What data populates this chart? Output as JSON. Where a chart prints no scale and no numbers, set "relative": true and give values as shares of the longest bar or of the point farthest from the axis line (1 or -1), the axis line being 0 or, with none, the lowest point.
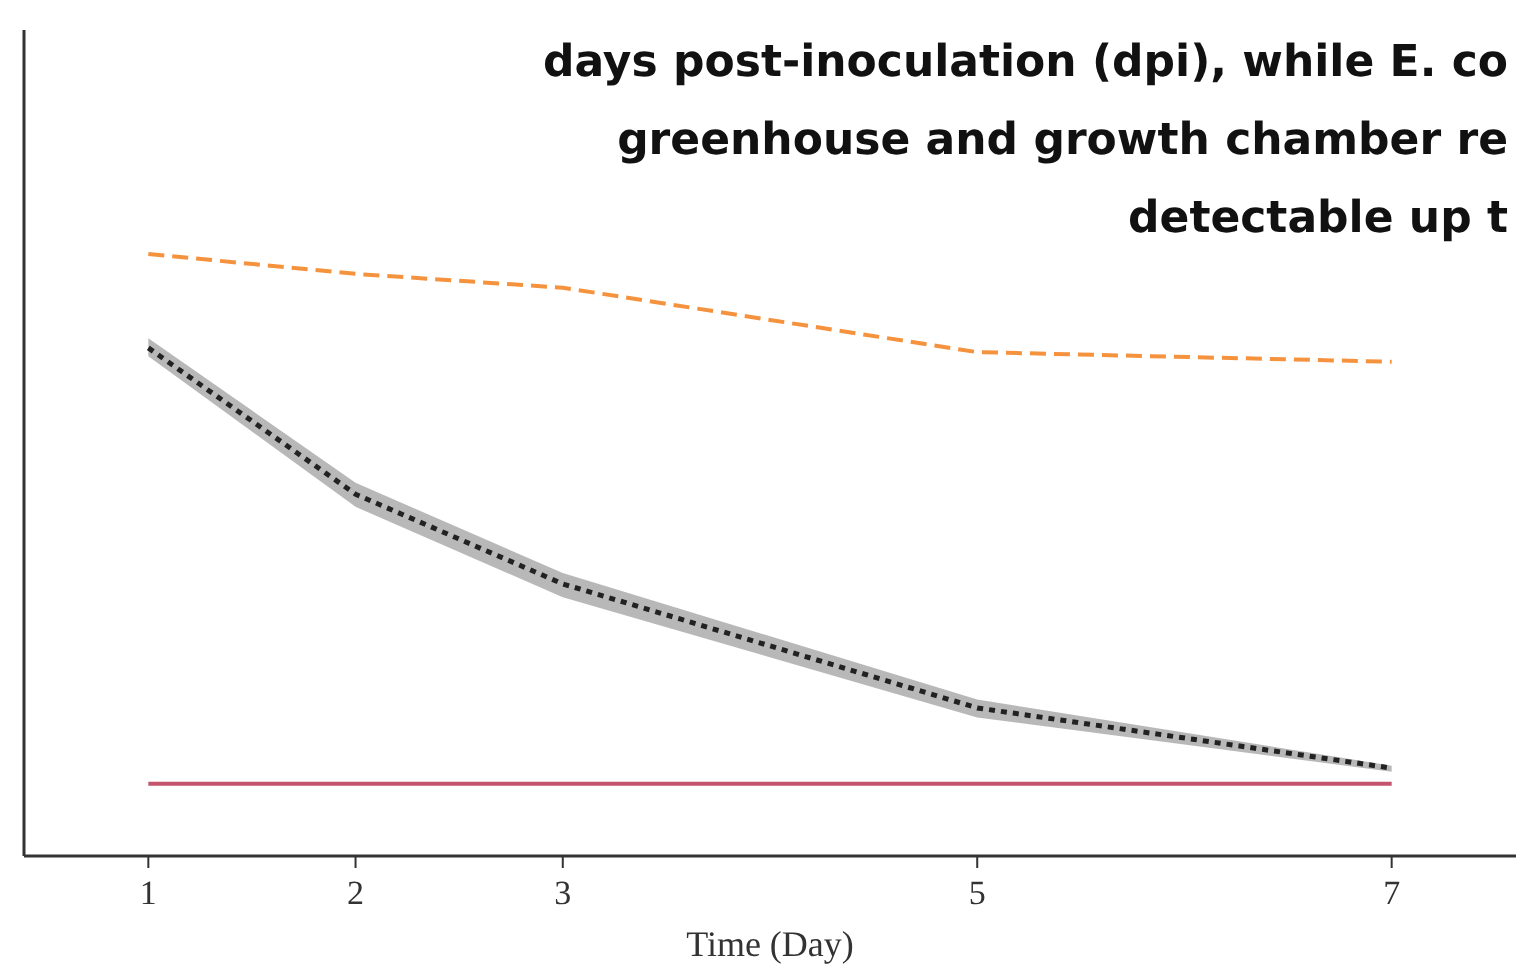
{
  "chart_data": {
    "type": "line",
    "relative": true,
    "xlabel": "Time (Day)",
    "x": [
      1,
      2,
      3,
      5,
      7
    ],
    "xlim": [
      0.4,
      7.6
    ],
    "xticks": [
      1,
      2,
      3,
      5,
      7
    ],
    "marker": "none",
    "annotations": [
      "days post-inoculation (dpi), while E. co",
      "greenhouse and growth chamber re",
      "detectable up t"
    ],
    "series": [
      {
        "color": "#f5923e",
        "line_style": "dashed",
        "values": [
          1,
          0.967,
          0.944,
          0.837,
          0.821
        ]
      },
      {
        "color": "#222222",
        "line_style": "dotted",
        "values": [
          0.844,
          0.601,
          0.452,
          0.246,
          0.146
        ],
        "lower": [
          0.83,
          0.58,
          0.43,
          0.23,
          0.14
        ],
        "upper": [
          0.86,
          0.62,
          0.47,
          0.26,
          0.15
        ]
      },
      {
        "color": "#c4536e",
        "line_style": "solid",
        "values": [
          0.12,
          0.12,
          0.12,
          0.12,
          0.12
        ]
      }
    ]
  }
}
